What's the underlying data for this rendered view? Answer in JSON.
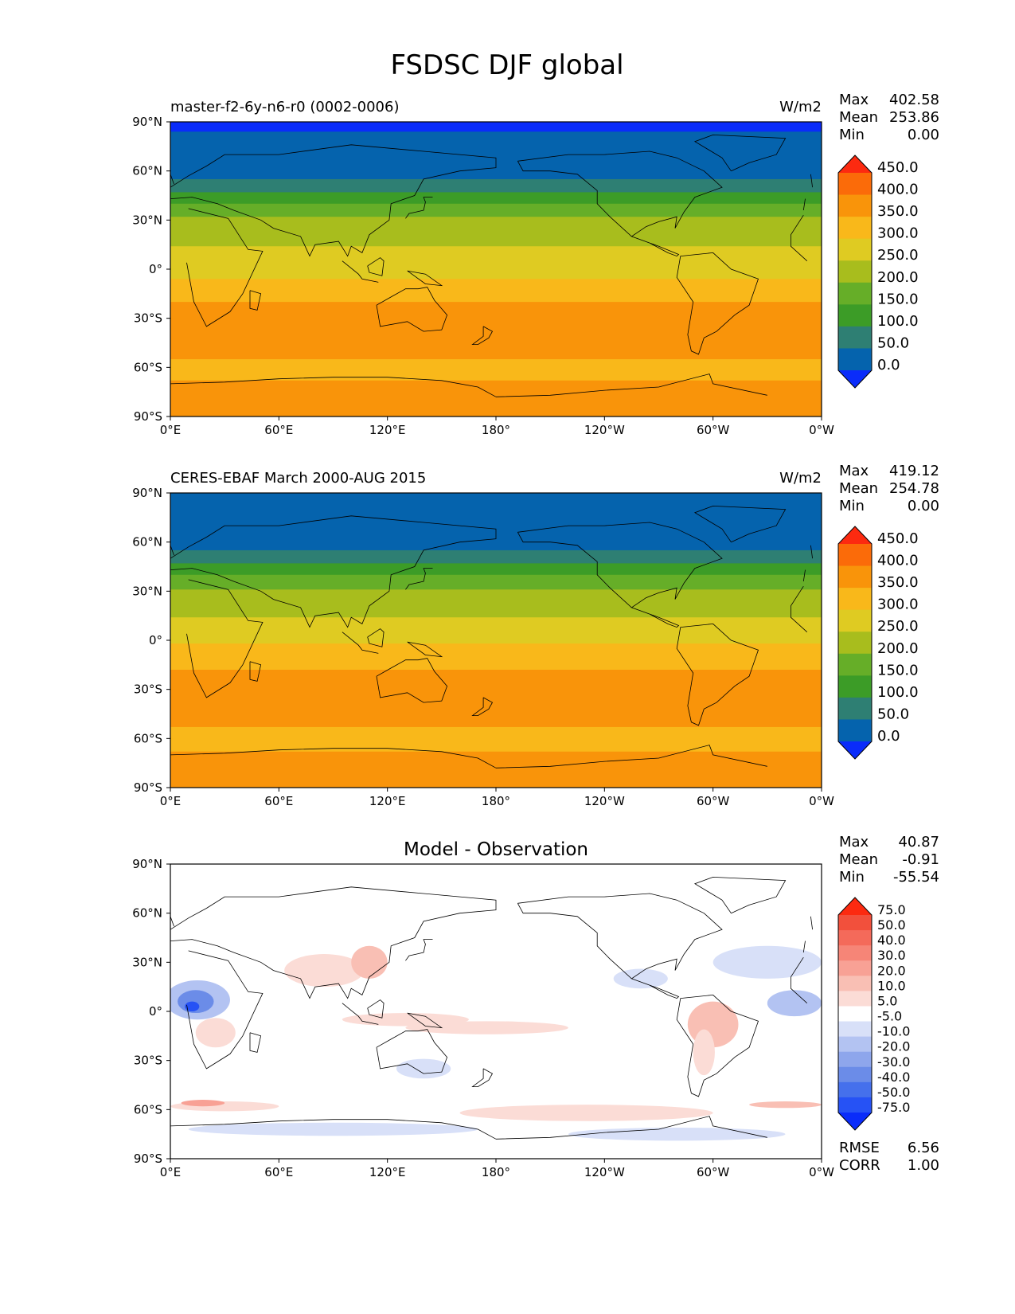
{
  "figure": {
    "title": "FSDSC DJF global"
  },
  "chart_data": [
    {
      "type": "heatmap",
      "panel": "model",
      "title": "master-f2-6y-n6-r0 (0002-0006)",
      "units": "W/m2",
      "stats": {
        "max": "402.58",
        "mean": "253.86",
        "min": "0.00"
      },
      "stat_labels": {
        "max": "Max",
        "mean": "Mean",
        "min": "Min"
      },
      "x_ticks": [
        "0°E",
        "60°E",
        "120°E",
        "180°",
        "120°W",
        "60°W",
        "0°W"
      ],
      "y_ticks": [
        "90°N",
        "60°N",
        "30°N",
        "0°",
        "30°S",
        "60°S",
        "90°S"
      ],
      "xlim": [
        0,
        360
      ],
      "ylim": [
        -90,
        90
      ],
      "colorbar": {
        "levels": [
          "0.0",
          "50.0",
          "100.0",
          "150.0",
          "200.0",
          "250.0",
          "300.0",
          "350.0",
          "400.0",
          "450.0"
        ],
        "colors": [
          "#0a2cfa",
          "#0563ad",
          "#2e7f73",
          "#3c9c27",
          "#66ae28",
          "#a8bd1d",
          "#dfcb22",
          "#f9b81a",
          "#f9940a",
          "#fb6b09",
          "#fc2a10"
        ]
      },
      "bands": [
        {
          "lat_from": 90,
          "lat_to": 84,
          "color": "#0a2cfa"
        },
        {
          "lat_from": 84,
          "lat_to": 55,
          "color": "#0563ad"
        },
        {
          "lat_from": 55,
          "lat_to": 47,
          "color": "#2e7f73"
        },
        {
          "lat_from": 47,
          "lat_to": 40,
          "color": "#3c9c27"
        },
        {
          "lat_from": 40,
          "lat_to": 32,
          "color": "#66ae28"
        },
        {
          "lat_from": 32,
          "lat_to": 14,
          "color": "#a8bd1d"
        },
        {
          "lat_from": 14,
          "lat_to": -6,
          "color": "#dfcb22"
        },
        {
          "lat_from": -6,
          "lat_to": -20,
          "color": "#f9b81a"
        },
        {
          "lat_from": -20,
          "lat_to": -55,
          "color": "#f9940a"
        },
        {
          "lat_from": -55,
          "lat_to": -68,
          "color": "#f9b81a"
        },
        {
          "lat_from": -68,
          "lat_to": -90,
          "color": "#f9940a"
        }
      ]
    },
    {
      "type": "heatmap",
      "panel": "observation",
      "title": "CERES-EBAF March 2000-AUG 2015",
      "units": "W/m2",
      "stats": {
        "max": "419.12",
        "mean": "254.78",
        "min": "0.00"
      },
      "stat_labels": {
        "max": "Max",
        "mean": "Mean",
        "min": "Min"
      },
      "x_ticks": [
        "0°E",
        "60°E",
        "120°E",
        "180°",
        "120°W",
        "60°W",
        "0°W"
      ],
      "y_ticks": [
        "90°N",
        "60°N",
        "30°N",
        "0°",
        "30°S",
        "60°S",
        "90°S"
      ],
      "xlim": [
        0,
        360
      ],
      "ylim": [
        -90,
        90
      ],
      "colorbar": {
        "levels": [
          "0.0",
          "50.0",
          "100.0",
          "150.0",
          "200.0",
          "250.0",
          "300.0",
          "350.0",
          "400.0",
          "450.0"
        ],
        "colors": [
          "#0a2cfa",
          "#0563ad",
          "#2e7f73",
          "#3c9c27",
          "#66ae28",
          "#a8bd1d",
          "#dfcb22",
          "#f9b81a",
          "#f9940a",
          "#fb6b09",
          "#fc2a10"
        ]
      },
      "bands": [
        {
          "lat_from": 90,
          "lat_to": 55,
          "color": "#0563ad"
        },
        {
          "lat_from": 55,
          "lat_to": 47,
          "color": "#2e7f73"
        },
        {
          "lat_from": 47,
          "lat_to": 40,
          "color": "#3c9c27"
        },
        {
          "lat_from": 40,
          "lat_to": 31,
          "color": "#66ae28"
        },
        {
          "lat_from": 31,
          "lat_to": 14,
          "color": "#a8bd1d"
        },
        {
          "lat_from": 14,
          "lat_to": -2,
          "color": "#dfcb22"
        },
        {
          "lat_from": -2,
          "lat_to": -18,
          "color": "#f9b81a"
        },
        {
          "lat_from": -18,
          "lat_to": -53,
          "color": "#f9940a"
        },
        {
          "lat_from": -53,
          "lat_to": -68,
          "color": "#f9b81a"
        },
        {
          "lat_from": -68,
          "lat_to": -90,
          "color": "#f9940a"
        }
      ]
    },
    {
      "type": "heatmap",
      "panel": "difference",
      "title": "Model - Observation",
      "units": "",
      "stats": {
        "max": "40.87",
        "mean": "-0.91",
        "min": "-55.54"
      },
      "stat_labels": {
        "max": "Max",
        "mean": "Mean",
        "min": "Min"
      },
      "metrics": {
        "rmse_label": "RMSE",
        "rmse": "6.56",
        "corr_label": "CORR",
        "corr": "1.00"
      },
      "x_ticks": [
        "0°E",
        "60°E",
        "120°E",
        "180°",
        "120°W",
        "60°W",
        "0°W"
      ],
      "y_ticks": [
        "90°N",
        "60°N",
        "30°N",
        "0°",
        "30°S",
        "60°S",
        "90°S"
      ],
      "xlim": [
        0,
        360
      ],
      "ylim": [
        -90,
        90
      ],
      "colorbar": {
        "levels": [
          "-75.0",
          "-50.0",
          "-40.0",
          "-30.0",
          "-20.0",
          "-10.0",
          "-5.0",
          "5.0",
          "10.0",
          "20.0",
          "30.0",
          "40.0",
          "50.0",
          "75.0"
        ],
        "colors": [
          "#0a2cfa",
          "#2652f5",
          "#4570ec",
          "#6b8ce8",
          "#8ea6ec",
          "#b3c3f2",
          "#d8e0f8",
          "#ffffff",
          "#fbdcd6",
          "#f9bfb4",
          "#f8a195",
          "#f68577",
          "#f46a5a",
          "#f2503c",
          "#fc2a10"
        ]
      },
      "blobs": [
        {
          "lon": 15,
          "lat": 7,
          "rx": 18,
          "ry": 12,
          "color": "#b3c3f2"
        },
        {
          "lon": 14,
          "lat": 6,
          "rx": 10,
          "ry": 7,
          "color": "#6b8ce8"
        },
        {
          "lon": 12,
          "lat": 3,
          "rx": 4,
          "ry": 3,
          "color": "#2652f5"
        },
        {
          "lon": 25,
          "lat": -13,
          "rx": 11,
          "ry": 9,
          "color": "#fbdcd6"
        },
        {
          "lon": 85,
          "lat": 25,
          "rx": 22,
          "ry": 10,
          "color": "#fbdcd6"
        },
        {
          "lon": 110,
          "lat": 30,
          "rx": 10,
          "ry": 10,
          "color": "#f9bfb4"
        },
        {
          "lon": 130,
          "lat": -5,
          "rx": 35,
          "ry": 4,
          "color": "#fbdcd6"
        },
        {
          "lon": 175,
          "lat": -10,
          "rx": 45,
          "ry": 4,
          "color": "#fbdcd6"
        },
        {
          "lon": 300,
          "lat": -8,
          "rx": 14,
          "ry": 14,
          "color": "#f9bfb4"
        },
        {
          "lon": 295,
          "lat": -25,
          "rx": 6,
          "ry": 14,
          "color": "#fbdcd6"
        },
        {
          "lon": 345,
          "lat": 5,
          "rx": 15,
          "ry": 8,
          "color": "#b3c3f2"
        },
        {
          "lon": 330,
          "lat": 30,
          "rx": 30,
          "ry": 10,
          "color": "#d8e0f8"
        },
        {
          "lon": 260,
          "lat": 20,
          "rx": 15,
          "ry": 6,
          "color": "#d8e0f8"
        },
        {
          "lon": 30,
          "lat": -58,
          "rx": 30,
          "ry": 3,
          "color": "#fbdcd6"
        },
        {
          "lon": 18,
          "lat": -56,
          "rx": 12,
          "ry": 2,
          "color": "#f8a195"
        },
        {
          "lon": 340,
          "lat": -57,
          "rx": 20,
          "ry": 2,
          "color": "#f9bfb4"
        },
        {
          "lon": 230,
          "lat": -62,
          "rx": 70,
          "ry": 5,
          "color": "#fbdcd6"
        },
        {
          "lon": 90,
          "lat": -72,
          "rx": 80,
          "ry": 4,
          "color": "#d8e0f8"
        },
        {
          "lon": 280,
          "lat": -75,
          "rx": 60,
          "ry": 4,
          "color": "#d8e0f8"
        },
        {
          "lon": 140,
          "lat": -35,
          "rx": 15,
          "ry": 6,
          "color": "#d8e0f8"
        }
      ]
    }
  ]
}
